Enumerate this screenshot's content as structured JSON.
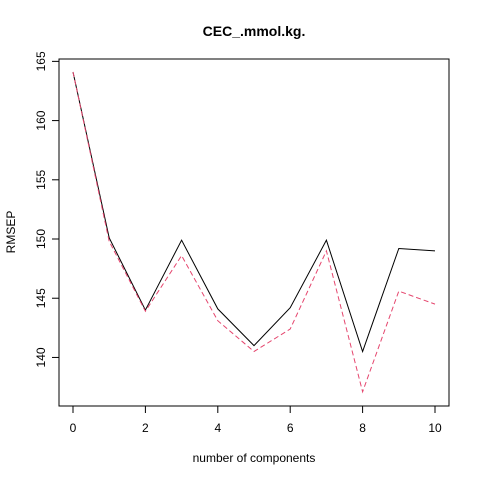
{
  "chart_data": {
    "type": "line",
    "title": "CEC_.mmol.kg.",
    "xlabel": "number of components",
    "ylabel": "RMSEP",
    "x": [
      0,
      1,
      2,
      3,
      4,
      5,
      6,
      7,
      8,
      9,
      10
    ],
    "xlim": [
      0,
      10
    ],
    "ylim": [
      135.9,
      165.2
    ],
    "x_ticks": [
      0,
      2,
      4,
      6,
      8,
      10
    ],
    "y_ticks": [
      140,
      145,
      150,
      155,
      160,
      165
    ],
    "grid": false,
    "series": [
      {
        "style": "solid",
        "color": "#000000",
        "values": [
          164.1,
          150.1,
          144.0,
          149.9,
          144.1,
          141.0,
          144.2,
          149.9,
          140.5,
          149.2,
          149.0
        ]
      },
      {
        "style": "dashed",
        "color": "#e5466e",
        "values": [
          164.1,
          149.8,
          143.9,
          148.6,
          143.1,
          140.5,
          142.4,
          149.0,
          137.1,
          145.6,
          144.5
        ]
      }
    ]
  }
}
